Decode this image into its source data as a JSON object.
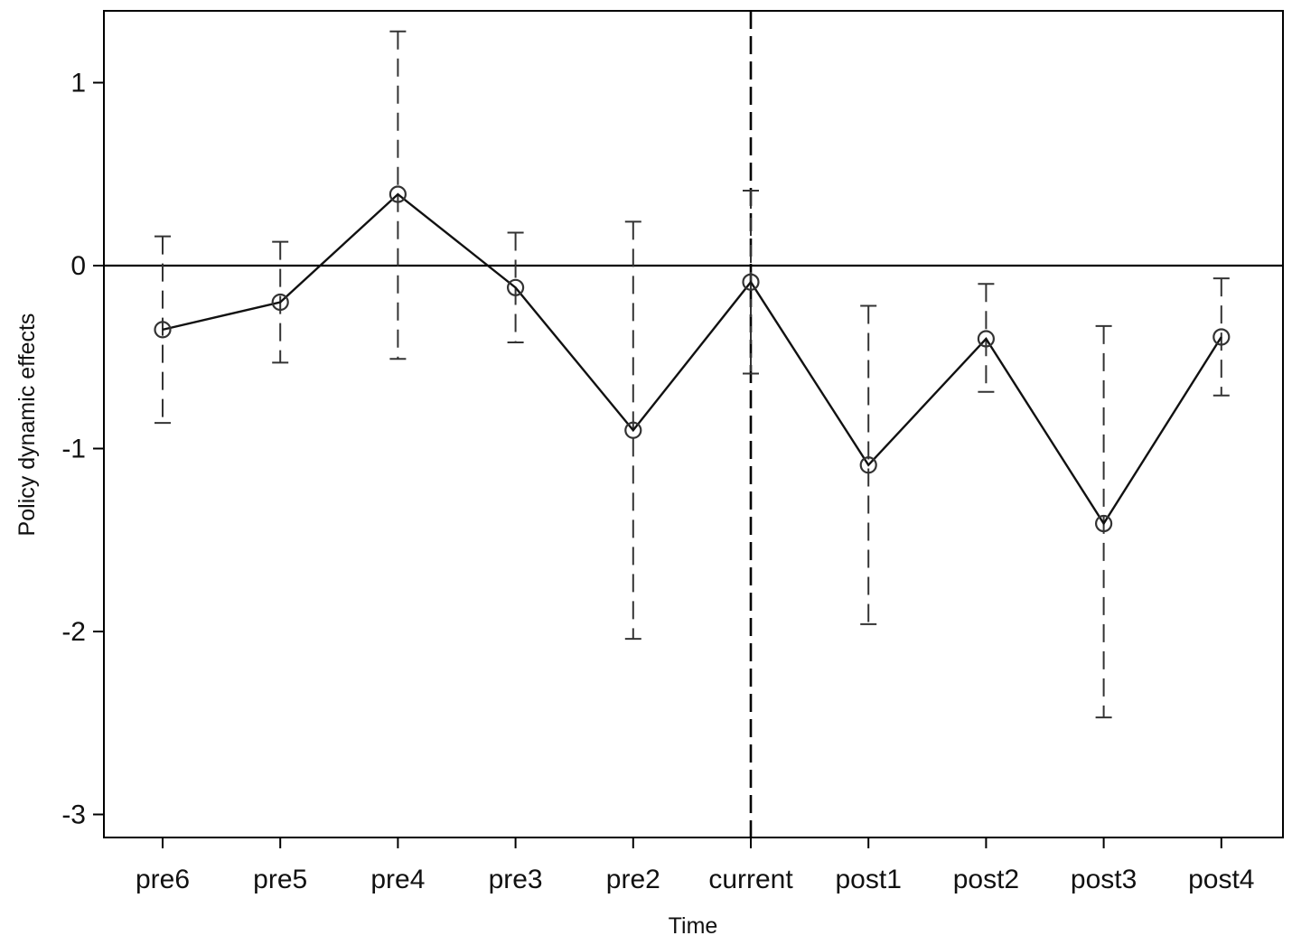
{
  "chart_data": {
    "type": "line",
    "title": "",
    "xlabel": "Time",
    "ylabel": "Policy dynamic effects",
    "categories": [
      "pre6",
      "pre5",
      "pre4",
      "pre3",
      "pre2",
      "current",
      "post1",
      "post2",
      "post3",
      "post4"
    ],
    "series": [
      {
        "values": [
          -0.35,
          -0.2,
          0.39,
          -0.12,
          -0.9,
          -0.09,
          -1.09,
          -0.4,
          -1.41,
          -0.39
        ],
        "ci_lower": [
          -0.86,
          -0.53,
          -0.51,
          -0.42,
          -2.04,
          -0.59,
          -1.96,
          -0.69,
          -2.47,
          -0.71
        ],
        "ci_upper": [
          0.16,
          0.13,
          1.28,
          0.18,
          0.24,
          0.41,
          -0.22,
          -0.1,
          -0.33,
          -0.07
        ]
      }
    ],
    "ylim": [
      -3.1,
      1.4
    ],
    "yticks": [
      1,
      0,
      -1,
      -2,
      -3
    ],
    "reference_lines": {
      "horizontal_y": 0,
      "vertical_at": "current"
    },
    "grid": false,
    "colors": {
      "line": "#111111",
      "error_bar": "#333333",
      "marker": "#333333",
      "axis": "#000000"
    }
  }
}
